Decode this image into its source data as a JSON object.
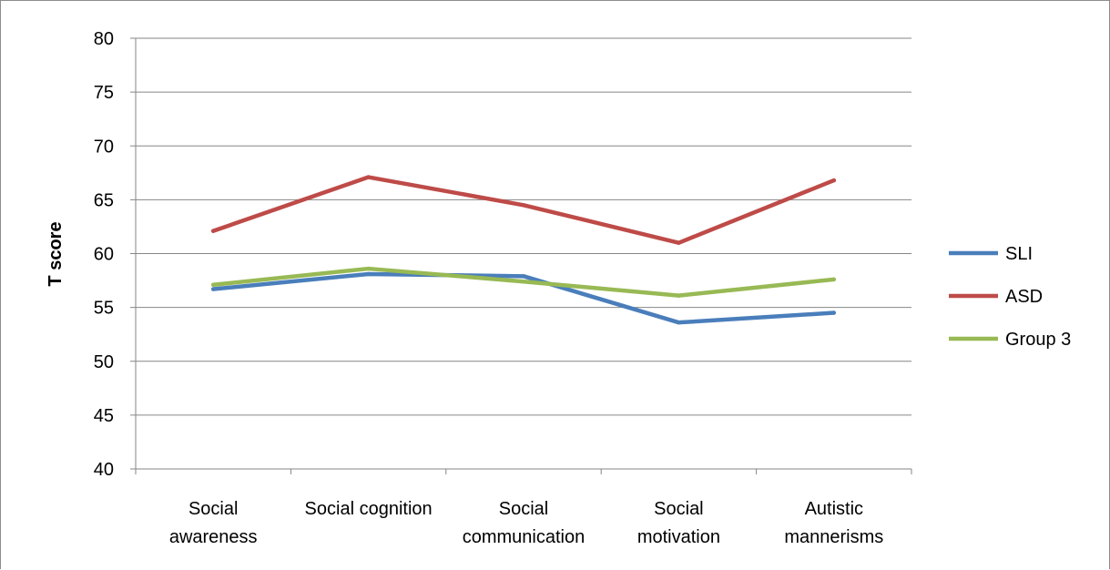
{
  "chart_data": {
    "type": "line",
    "title": "",
    "xlabel": "",
    "ylabel": "T score",
    "ylim": [
      40,
      80
    ],
    "yticks": [
      "40",
      "45",
      "50",
      "55",
      "60",
      "65",
      "70",
      "75",
      "80"
    ],
    "grid": true,
    "legend_position": "right",
    "categories": [
      [
        "Social",
        "awareness"
      ],
      [
        "Social cognition"
      ],
      [
        "Social",
        "communication"
      ],
      [
        "Social",
        "motivation"
      ],
      [
        "Autistic",
        "mannerisms"
      ]
    ],
    "series": [
      {
        "name": "SLI",
        "color": "#4a7ebb",
        "values": [
          56.7,
          58.1,
          57.9,
          53.6,
          54.5
        ]
      },
      {
        "name": "ASD",
        "color": "#be4b48",
        "values": [
          62.1,
          67.1,
          64.5,
          61.0,
          66.8
        ]
      },
      {
        "name": "Group 3",
        "color": "#98b954",
        "values": [
          57.1,
          58.6,
          57.4,
          56.1,
          57.6
        ]
      }
    ]
  }
}
